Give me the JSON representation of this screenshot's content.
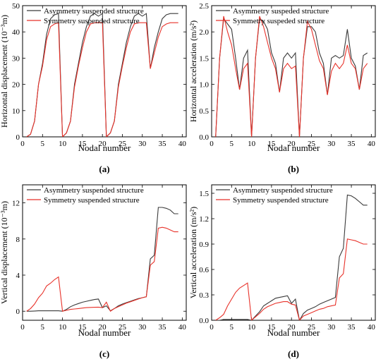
{
  "colors": {
    "asymmetry": "#3a3a3a",
    "symmetry": "#e8322a",
    "axis": "#000000",
    "background": "#ffffff"
  },
  "chart_data": [
    {
      "id": "a",
      "type": "line",
      "panel_label": "(a)",
      "title": "",
      "xlabel": "Nodal number",
      "ylabel": "Horizontal displacement (10⁻³m)",
      "xlim": [
        0,
        41
      ],
      "ylim": [
        0,
        50
      ],
      "xticks": [
        0,
        5,
        10,
        15,
        20,
        25,
        30,
        35,
        40
      ],
      "yticks": [
        0,
        10,
        20,
        30,
        40,
        50
      ],
      "legend": "top-left",
      "grid": false,
      "series": [
        {
          "name": "Asymmetry suspended structure",
          "color_key": "asymmetry",
          "x": [
            1,
            2,
            3,
            4,
            5,
            6,
            7,
            8,
            9,
            10,
            11,
            12,
            13,
            14,
            15,
            16,
            17,
            18,
            19,
            20,
            21,
            22,
            23,
            24,
            25,
            26,
            27,
            28,
            29,
            30,
            31,
            32,
            33,
            34,
            35,
            36,
            37,
            38,
            39
          ],
          "y": [
            0,
            1,
            6,
            20,
            28,
            39,
            45,
            46.5,
            47,
            0,
            1.5,
            6,
            20,
            28,
            36,
            42,
            46,
            47,
            46,
            47,
            0,
            1.5,
            6,
            20,
            28,
            36,
            42,
            46,
            47,
            46,
            47,
            26,
            34,
            40,
            45,
            46.5,
            47,
            47,
            47
          ]
        },
        {
          "name": "Symmetry suspended structure",
          "color_key": "symmetry",
          "x": [
            1,
            2,
            3,
            4,
            5,
            6,
            7,
            8,
            9,
            10,
            11,
            12,
            13,
            14,
            15,
            16,
            17,
            18,
            19,
            20,
            21,
            22,
            23,
            24,
            25,
            26,
            27,
            28,
            29,
            30,
            31,
            32,
            33,
            34,
            35,
            36,
            37,
            38,
            39
          ],
          "y": [
            0,
            1,
            6,
            20,
            27,
            37,
            42,
            43,
            43.5,
            0,
            1.5,
            6,
            19,
            27,
            34,
            40,
            43,
            43.5,
            43.5,
            43.5,
            0,
            1.5,
            6,
            19,
            27,
            34,
            40,
            43,
            43.5,
            43.5,
            43.5,
            26,
            32,
            38,
            42,
            43,
            43.5,
            43.5,
            43.5
          ]
        }
      ]
    },
    {
      "id": "b",
      "type": "line",
      "panel_label": "(b)",
      "title": "",
      "xlabel": "Nodal number",
      "ylabel": "Horizontal acceleration (m/s²)",
      "xlim": [
        0,
        41
      ],
      "ylim": [
        0,
        2.5
      ],
      "xticks": [
        0,
        5,
        10,
        15,
        20,
        25,
        30,
        35,
        40
      ],
      "yticks": [
        0.0,
        0.5,
        1.0,
        1.5,
        2.0,
        2.5
      ],
      "legend": "top-left",
      "grid": false,
      "series": [
        {
          "name": "Asymmetry suspeded structure",
          "color_key": "asymmetry",
          "x": [
            1,
            2,
            3,
            4,
            5,
            6,
            7,
            8,
            9,
            10,
            11,
            12,
            13,
            14,
            15,
            16,
            17,
            18,
            19,
            20,
            21,
            22,
            23,
            24,
            25,
            26,
            27,
            28,
            29,
            30,
            31,
            32,
            33,
            34,
            35,
            36,
            37,
            38,
            39
          ],
          "y": [
            0,
            1.5,
            2.25,
            2.15,
            2.05,
            1.5,
            0.9,
            1.5,
            1.65,
            0,
            1.5,
            2.25,
            2.2,
            2.05,
            1.6,
            1.4,
            0.85,
            1.5,
            1.6,
            1.5,
            1.6,
            0,
            1.5,
            2.1,
            2.1,
            2.0,
            1.6,
            1.4,
            0.8,
            1.5,
            1.55,
            1.5,
            1.55,
            2.05,
            1.5,
            1.35,
            0.9,
            1.55,
            1.6
          ]
        },
        {
          "name": "Symmetry suspeded structure",
          "color_key": "symmetry",
          "x": [
            1,
            2,
            3,
            4,
            5,
            6,
            7,
            8,
            9,
            10,
            11,
            12,
            13,
            14,
            15,
            16,
            17,
            18,
            19,
            20,
            21,
            22,
            23,
            24,
            25,
            26,
            27,
            28,
            29,
            30,
            31,
            32,
            33,
            34,
            35,
            36,
            37,
            38,
            39
          ],
          "y": [
            0,
            1.5,
            2.3,
            2.0,
            1.75,
            1.3,
            0.9,
            1.3,
            1.4,
            0,
            1.5,
            2.3,
            2.1,
            1.8,
            1.5,
            1.3,
            0.85,
            1.3,
            1.4,
            1.3,
            1.35,
            0,
            1.5,
            2.2,
            2.05,
            1.75,
            1.45,
            1.3,
            0.8,
            1.25,
            1.4,
            1.3,
            1.4,
            1.75,
            1.4,
            1.3,
            0.9,
            1.3,
            1.4
          ]
        }
      ]
    },
    {
      "id": "c",
      "type": "line",
      "panel_label": "(c)",
      "title": "",
      "xlabel": "Nodal number",
      "ylabel": "Vertical displacement (10⁻³m)",
      "xlim": [
        0,
        41
      ],
      "ylim": [
        -1,
        14
      ],
      "xticks": [
        0,
        5,
        10,
        15,
        20,
        25,
        30,
        35,
        40
      ],
      "yticks": [
        0,
        4,
        8,
        12
      ],
      "legend": "top-left",
      "grid": false,
      "series": [
        {
          "name": "Asymmetry suspended structure",
          "color_key": "asymmetry",
          "x": [
            1,
            2,
            3,
            4,
            5,
            6,
            7,
            8,
            9,
            10,
            11,
            12,
            13,
            14,
            15,
            16,
            17,
            18,
            19,
            20,
            21,
            22,
            23,
            24,
            25,
            26,
            27,
            28,
            29,
            30,
            31,
            32,
            33,
            34,
            35,
            36,
            37,
            38,
            39
          ],
          "y": [
            0,
            0,
            0.02,
            0.05,
            0.05,
            0.05,
            0.05,
            0.05,
            0.05,
            0,
            0.2,
            0.5,
            0.7,
            0.85,
            1.0,
            1.1,
            1.2,
            1.3,
            1.35,
            0.4,
            0.6,
            0.05,
            0.3,
            0.6,
            0.8,
            0.95,
            1.1,
            1.25,
            1.4,
            1.5,
            1.6,
            5.8,
            6.2,
            11.5,
            11.5,
            11.4,
            11.2,
            10.8,
            10.8
          ]
        },
        {
          "name": "Symmetry suspended structure",
          "color_key": "symmetry",
          "x": [
            1,
            2,
            3,
            4,
            5,
            6,
            7,
            8,
            9,
            10,
            11,
            12,
            13,
            14,
            15,
            16,
            17,
            18,
            19,
            20,
            21,
            22,
            23,
            24,
            25,
            26,
            27,
            28,
            29,
            30,
            31,
            32,
            33,
            34,
            35,
            36,
            37,
            38,
            39
          ],
          "y": [
            0,
            0.3,
            0.8,
            1.5,
            2.0,
            2.8,
            3.1,
            3.5,
            3.8,
            0,
            0.1,
            0.2,
            0.25,
            0.3,
            0.35,
            0.4,
            0.42,
            0.44,
            0.45,
            0.4,
            1.0,
            0,
            0.3,
            0.5,
            0.7,
            0.9,
            1.05,
            1.2,
            1.35,
            1.5,
            1.6,
            5.1,
            5.5,
            9.2,
            9.3,
            9.2,
            9.0,
            8.8,
            8.8
          ]
        }
      ]
    },
    {
      "id": "d",
      "type": "line",
      "panel_label": "(d)",
      "title": "",
      "xlabel": "Nodal number",
      "ylabel": "Vertical acceleration (m/s²)",
      "xlim": [
        0,
        41
      ],
      "ylim": [
        0,
        1.6
      ],
      "xticks": [
        0,
        5,
        10,
        15,
        20,
        25,
        30,
        35,
        40
      ],
      "yticks": [
        0.0,
        0.3,
        0.6,
        0.9,
        1.2,
        1.5
      ],
      "legend": "top-left",
      "grid": false,
      "series": [
        {
          "name": "Asymmetry suspended structure",
          "color_key": "asymmetry",
          "x": [
            1,
            2,
            3,
            4,
            5,
            6,
            7,
            8,
            9,
            10,
            11,
            12,
            13,
            14,
            15,
            16,
            17,
            18,
            19,
            20,
            21,
            22,
            23,
            24,
            25,
            26,
            27,
            28,
            29,
            30,
            31,
            32,
            33,
            34,
            35,
            36,
            37,
            38,
            39
          ],
          "y": [
            0,
            0,
            0.01,
            0.01,
            0.01,
            0.01,
            0.01,
            0.01,
            0.01,
            0,
            0.05,
            0.1,
            0.17,
            0.2,
            0.23,
            0.26,
            0.27,
            0.28,
            0.29,
            0.2,
            0.25,
            0,
            0.08,
            0.12,
            0.14,
            0.16,
            0.19,
            0.21,
            0.23,
            0.25,
            0.27,
            0.75,
            0.85,
            1.48,
            1.47,
            1.44,
            1.4,
            1.36,
            1.36
          ]
        },
        {
          "name": "Symmetry suspended structure",
          "color_key": "symmetry",
          "x": [
            1,
            2,
            3,
            4,
            5,
            6,
            7,
            8,
            9,
            10,
            11,
            12,
            13,
            14,
            15,
            16,
            17,
            18,
            19,
            20,
            21,
            22,
            23,
            24,
            25,
            26,
            27,
            28,
            29,
            30,
            31,
            32,
            33,
            34,
            35,
            36,
            37,
            38,
            39
          ],
          "y": [
            0,
            0.03,
            0.07,
            0.17,
            0.25,
            0.33,
            0.38,
            0.41,
            0.44,
            0,
            0.04,
            0.08,
            0.13,
            0.16,
            0.18,
            0.2,
            0.21,
            0.22,
            0.22,
            0.19,
            0.18,
            0,
            0.05,
            0.07,
            0.09,
            0.11,
            0.13,
            0.14,
            0.16,
            0.17,
            0.18,
            0.5,
            0.55,
            0.96,
            0.95,
            0.94,
            0.92,
            0.9,
            0.9
          ]
        }
      ]
    }
  ]
}
